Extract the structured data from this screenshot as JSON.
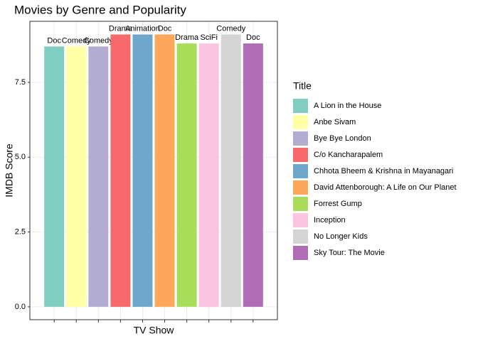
{
  "chart_data": {
    "type": "bar",
    "title": "Movies by Genre and Popularity",
    "xlabel": "TV Show",
    "ylabel": "IMDB Score",
    "legend_title": "Title",
    "categories": [
      null,
      null,
      null,
      null,
      null,
      null,
      null,
      null,
      null,
      null
    ],
    "bar_names": [
      "A Lion in the House",
      "Anbe Sivam",
      "Bye Bye London",
      "C/o Kancharapalem",
      "Chhota Bheem & Krishna in Mayanagari",
      "David Attenborough: A Life on Our Planet",
      "Forrest Gump",
      "Inception",
      "No Longer Kids",
      "Sky Tour: The Movie"
    ],
    "bar_labels": [
      "Doc",
      "Comedy",
      "Comedy",
      "Drama",
      "Animation",
      "Doc",
      "Drama",
      "SciFi",
      "Comedy",
      "Doc"
    ],
    "values": [
      8.7,
      8.7,
      8.7,
      9.1,
      9.1,
      9.1,
      8.8,
      8.8,
      9.1,
      8.8
    ],
    "colors": [
      "#80cdc1",
      "#ffffa6",
      "#b2abd2",
      "#f8696b",
      "#6fa6cc",
      "#fca75a",
      "#a8dc59",
      "#fbc5e2",
      "#d4d4d4",
      "#b06cb4"
    ],
    "ylim": [
      -0.43,
      9.54
    ],
    "yticks": [
      {
        "value": 0,
        "label": "0.0"
      },
      {
        "value": 2.5,
        "label": "2.5"
      },
      {
        "value": 5,
        "label": "5.0"
      },
      {
        "value": 7.5,
        "label": "7.5"
      }
    ],
    "grid": true
  }
}
